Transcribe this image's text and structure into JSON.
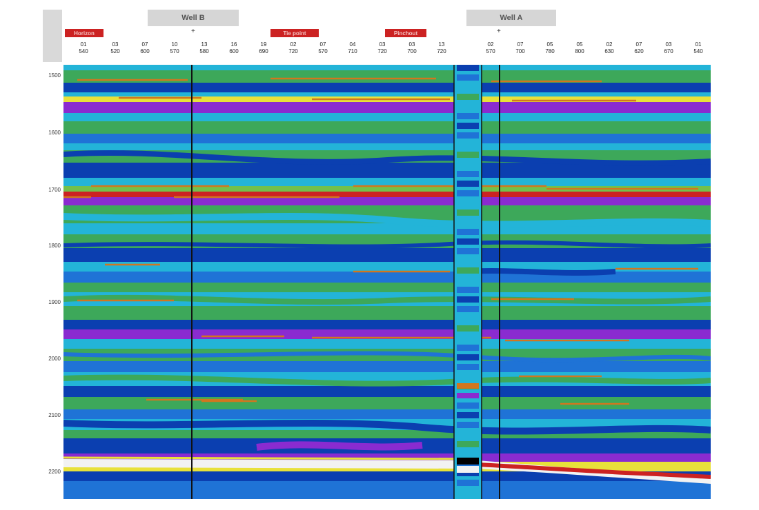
{
  "header": {
    "well_tabs": [
      {
        "label": "Well B"
      },
      {
        "label": "Well A"
      }
    ],
    "flags": [
      {
        "label": "Horizon"
      },
      {
        "label": "Tie point"
      },
      {
        "label": "Pinchout"
      }
    ],
    "markers": [
      "+",
      "+"
    ]
  },
  "traces": [
    {
      "top": "01",
      "bottom": "540"
    },
    {
      "top": "03",
      "bottom": "520"
    },
    {
      "top": "07",
      "bottom": "600"
    },
    {
      "top": "10",
      "bottom": "570"
    },
    {
      "top": "13",
      "bottom": "580"
    },
    {
      "top": "16",
      "bottom": "600"
    },
    {
      "top": "19",
      "bottom": "690"
    },
    {
      "top": "02",
      "bottom": "720"
    },
    {
      "top": "07",
      "bottom": "570"
    },
    {
      "top": "04",
      "bottom": "710"
    },
    {
      "top": "03",
      "bottom": "720"
    },
    {
      "top": "03",
      "bottom": "700"
    },
    {
      "top": "13",
      "bottom": "720"
    },
    {
      "top": "02",
      "bottom": "570"
    },
    {
      "top": "07",
      "bottom": "700"
    },
    {
      "top": "05",
      "bottom": "780"
    },
    {
      "top": "05",
      "bottom": "800"
    },
    {
      "top": "02",
      "bottom": "630"
    },
    {
      "top": "07",
      "bottom": "620"
    },
    {
      "top": "03",
      "bottom": "670"
    },
    {
      "top": "01",
      "bottom": "540"
    }
  ],
  "depth_labels": [
    "1500",
    "1600",
    "1700",
    "1800",
    "1900",
    "2000",
    "2100",
    "2200"
  ],
  "colors": {
    "deep_blue": "#0b3fb0",
    "blue": "#1f73d6",
    "cyan": "#23b4d8",
    "green": "#3da85a",
    "light_green": "#72c04c",
    "purple": "#8a2bd0",
    "red": "#cc2222",
    "yellow": "#e8e13a",
    "white": "#f2f2f2",
    "well_line": "#111111"
  }
}
